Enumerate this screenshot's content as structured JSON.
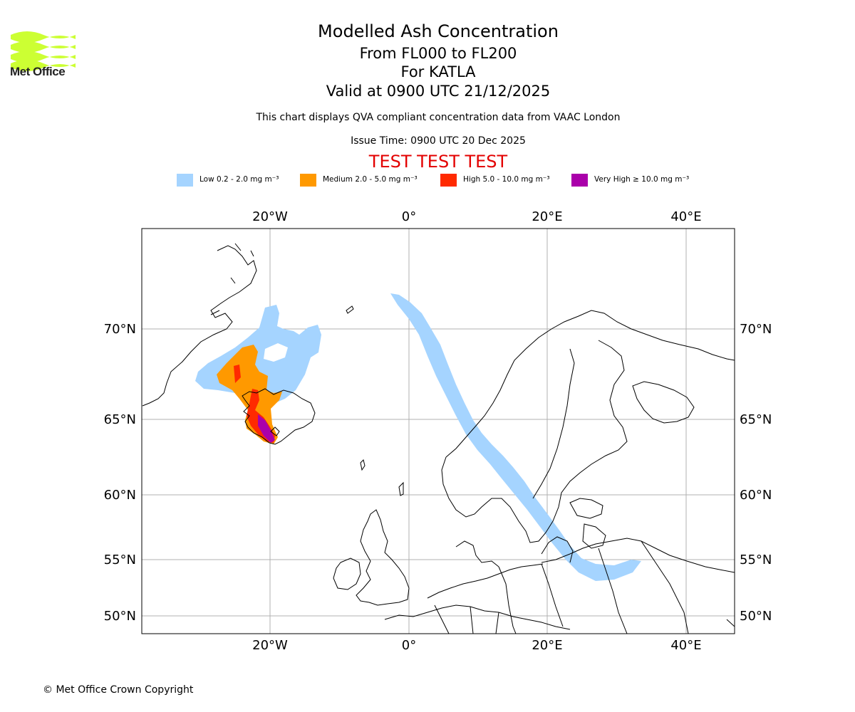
{
  "logo": {
    "text": "Met Office",
    "color": "#ccff33"
  },
  "title": {
    "main": "Modelled Ash Concentration",
    "levels": "From FL000 to FL200",
    "volcano": "For KATLA",
    "valid": "Valid at 0900 UTC 21/12/2025",
    "description": "This chart displays QVA compliant concentration data from VAAC London",
    "issue": "Issue Time: 0900 UTC 20 Dec 2025",
    "test_banner": "TEST TEST TEST"
  },
  "legend": [
    {
      "label": "Low 0.2 - 2.0 mg m⁻³",
      "color": "#a5d4ff"
    },
    {
      "label": "Medium 2.0 - 5.0 mg m⁻³",
      "color": "#ff9900"
    },
    {
      "label": "High 5.0 - 10.0 mg m⁻³",
      "color": "#ff2a00"
    },
    {
      "label": "Very High  ≥  10.0 mg m⁻³",
      "color": "#aa00aa"
    }
  ],
  "map": {
    "longitude_labels": [
      "20°W",
      "0°",
      "20°E",
      "40°E"
    ],
    "latitude_labels": [
      "70°N",
      "65°N",
      "60°N",
      "55°N",
      "50°N"
    ]
  },
  "footer": {
    "copyright": "© Met Office Crown Copyright"
  }
}
